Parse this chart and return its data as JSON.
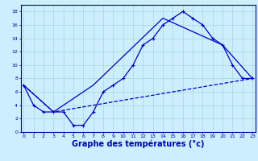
{
  "line1": {
    "x": [
      0,
      1,
      2,
      3,
      4,
      5,
      6,
      7,
      8,
      9,
      10,
      11,
      12,
      13,
      14,
      15,
      16,
      17,
      18,
      19,
      20,
      21,
      22,
      23
    ],
    "y": [
      7,
      4,
      3,
      3,
      3,
      1,
      1,
      3,
      6,
      7,
      8,
      10,
      13,
      14,
      16,
      17,
      18,
      17,
      16,
      14,
      13,
      10,
      8,
      8
    ],
    "color": "#0000bb",
    "linewidth": 0.9,
    "marker": "+"
  },
  "line2": {
    "x": [
      0,
      3,
      7,
      14,
      20,
      23
    ],
    "y": [
      7,
      3,
      7,
      17,
      13,
      8
    ],
    "color": "#0000bb",
    "linewidth": 0.9
  },
  "line3": {
    "x": [
      0,
      3,
      7,
      23
    ],
    "y": [
      7,
      3,
      4,
      8
    ],
    "color": "#0000bb",
    "linewidth": 0.9,
    "linestyle": "--"
  },
  "xlim": [
    -0.3,
    23.3
  ],
  "ylim": [
    0,
    19
  ],
  "yticks": [
    0,
    2,
    4,
    6,
    8,
    10,
    12,
    14,
    16,
    18
  ],
  "xticks": [
    0,
    1,
    2,
    3,
    4,
    5,
    6,
    7,
    8,
    9,
    10,
    11,
    12,
    13,
    14,
    15,
    16,
    17,
    18,
    19,
    20,
    21,
    22,
    23
  ],
  "xlabel": "Graphe des températures (°c)",
  "bgcolor": "#cceeff",
  "gridcolor": "#aadddd",
  "axiscolor": "#0000aa",
  "tick_fontsize": 4.5,
  "xlabel_fontsize": 7.0
}
